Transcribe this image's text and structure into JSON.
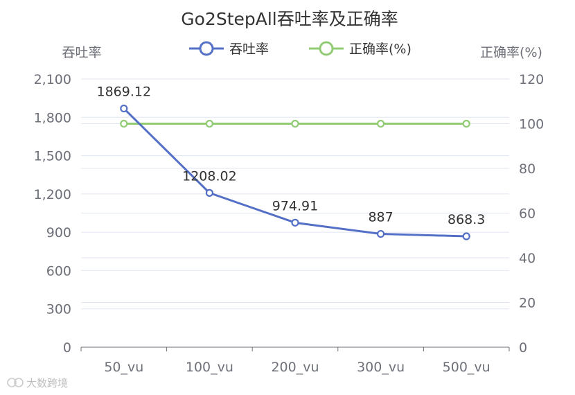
{
  "chart_data": {
    "type": "line",
    "title": "Go2StepAll吞吐率及正确率",
    "categories": [
      "50_vu",
      "100_vu",
      "200_vu",
      "300_vu",
      "500_vu"
    ],
    "series": [
      {
        "name": "吞吐率",
        "axis": "left",
        "color": "#5470c6",
        "values": [
          1869.12,
          1208.02,
          974.91,
          887,
          868.3
        ],
        "labels": [
          "1869.12",
          "1208.02",
          "974.91",
          "887",
          "868.3"
        ]
      },
      {
        "name": "正确率(%)",
        "axis": "right",
        "color": "#91cc75",
        "values": [
          100,
          100,
          100,
          100,
          100
        ]
      }
    ],
    "y_left": {
      "label": "吞吐率",
      "ylim": [
        0,
        2100
      ],
      "ticks": [
        0,
        300,
        600,
        900,
        1200,
        1500,
        1800,
        2100
      ],
      "tick_labels": [
        "0",
        "300",
        "600",
        "900",
        "1,200",
        "1,500",
        "1,800",
        "2,100"
      ]
    },
    "y_right": {
      "label": "正确率(%)",
      "ylim": [
        0,
        120
      ],
      "ticks": [
        0,
        20,
        40,
        60,
        80,
        100,
        120
      ],
      "tick_labels": [
        "0",
        "20",
        "40",
        "60",
        "80",
        "100",
        "120"
      ]
    },
    "grid": true,
    "legend_position": "top-center"
  },
  "watermark": {
    "text": "大数跨境"
  }
}
